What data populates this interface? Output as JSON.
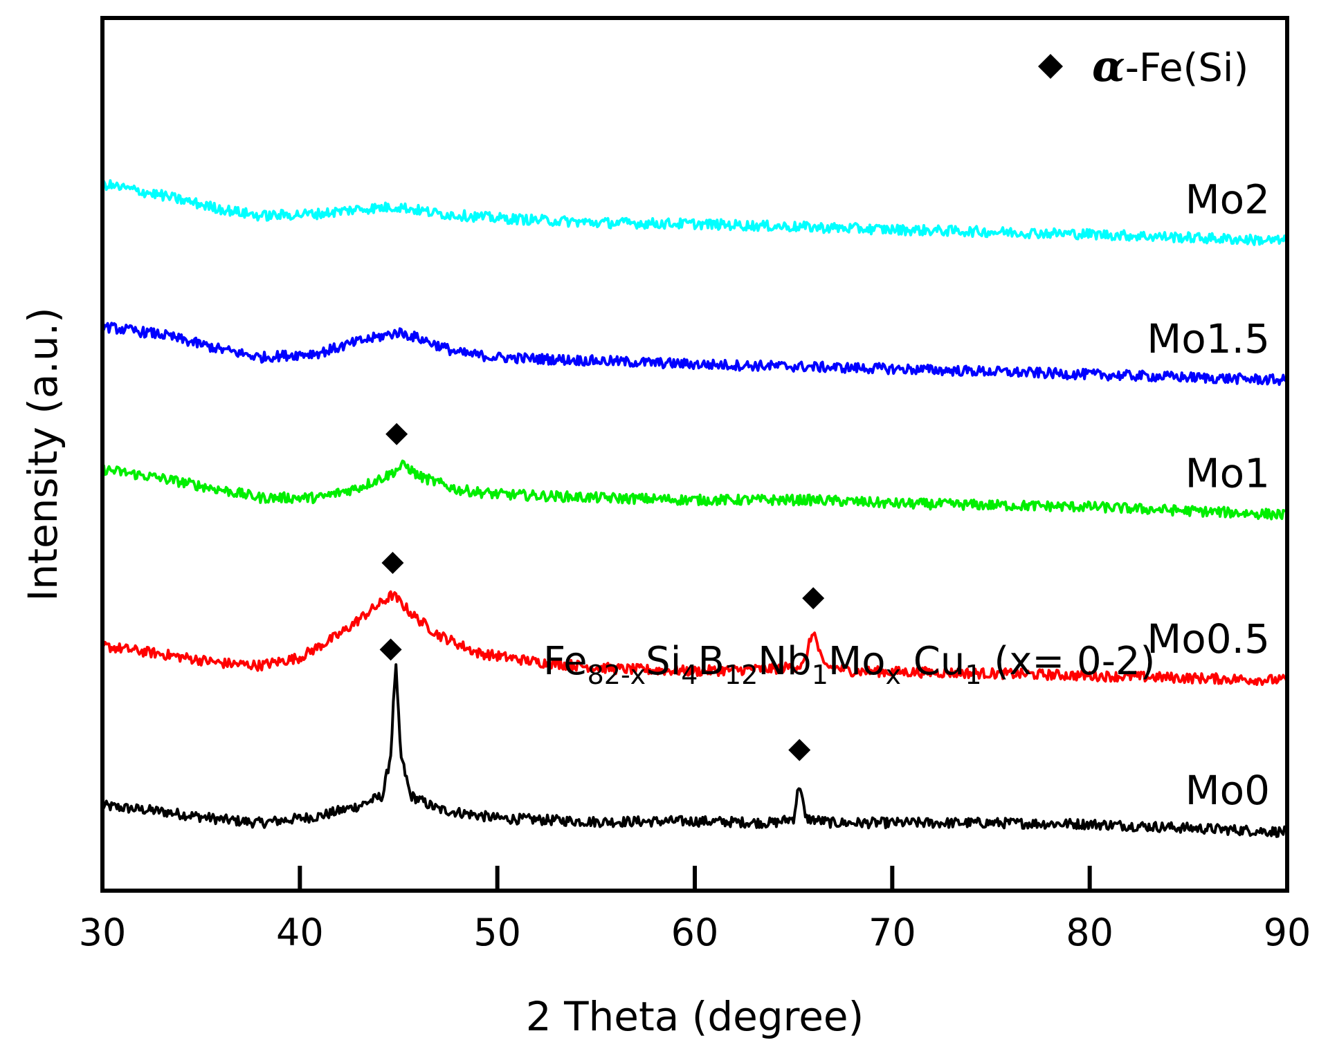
{
  "chart_data": {
    "type": "line",
    "xlabel": "2 Theta (degree)",
    "ylabel": "Intensity (a.u.)",
    "xlim": [
      30,
      90
    ],
    "xticks": [
      30,
      40,
      50,
      60,
      70,
      80,
      90
    ],
    "tick_labels": [
      "30",
      "40",
      "50",
      "60",
      "70",
      "80",
      "90"
    ],
    "yticks": [],
    "legend": {
      "marker": "diamond",
      "alpha": "α",
      "text": "-Fe(Si)",
      "placement": "top-right"
    },
    "annotation": {
      "label": "Fe82-xSi4B12Nb1Mox Cu1 (x= 0-2)",
      "parts": [
        {
          "t": "Fe",
          "s": "normal"
        },
        {
          "t": "82-x",
          "s": "sub"
        },
        {
          "t": "Si",
          "s": "normal"
        },
        {
          "t": "4",
          "s": "sub"
        },
        {
          "t": "B",
          "s": "normal"
        },
        {
          "t": "12",
          "s": "sub"
        },
        {
          "t": "Nb",
          "s": "normal"
        },
        {
          "t": "1",
          "s": "sub"
        },
        {
          "t": "Mo",
          "s": "normal"
        },
        {
          "t": "x",
          "s": "sub"
        },
        {
          "t": " Cu",
          "s": "normal"
        },
        {
          "t": "1",
          "s": "sub"
        },
        {
          "t": " (x= 0-2)",
          "s": "normal"
        }
      ]
    },
    "series": [
      {
        "name": "Mo0",
        "color": "#000000",
        "offset": 0,
        "points": [
          [
            30,
            15
          ],
          [
            33,
            10
          ],
          [
            36,
            3
          ],
          [
            38,
            0
          ],
          [
            41,
            6
          ],
          [
            43,
            15
          ],
          [
            44.2,
            24
          ],
          [
            44.6,
            60
          ],
          [
            44.85,
            140
          ],
          [
            45.1,
            60
          ],
          [
            45.6,
            24
          ],
          [
            47,
            12
          ],
          [
            50,
            4
          ],
          [
            55,
            1
          ],
          [
            60,
            1.5
          ],
          [
            64,
            0
          ],
          [
            65,
            4
          ],
          [
            65.3,
            36
          ],
          [
            65.6,
            4
          ],
          [
            67,
            0
          ],
          [
            75,
            0
          ],
          [
            80,
            -1
          ],
          [
            90,
            -8
          ]
        ],
        "markers": [
          44.6,
          65.3
        ]
      },
      {
        "name": "Mo0.5",
        "color": "#ff0000",
        "offset": 135,
        "points": [
          [
            30,
            20
          ],
          [
            33,
            13
          ],
          [
            36,
            5
          ],
          [
            38,
            3
          ],
          [
            40,
            10
          ],
          [
            42,
            30
          ],
          [
            43.5,
            50
          ],
          [
            44.7,
            65
          ],
          [
            45.8,
            46
          ],
          [
            47,
            30
          ],
          [
            49,
            14
          ],
          [
            52,
            6
          ],
          [
            56,
            0
          ],
          [
            60,
            -2
          ],
          [
            64,
            0
          ],
          [
            65.5,
            3
          ],
          [
            66,
            34
          ],
          [
            66.5,
            3
          ],
          [
            68,
            -2
          ],
          [
            75,
            -4
          ],
          [
            85,
            -8
          ],
          [
            90,
            -10
          ]
        ],
        "markers": [
          44.7,
          66
        ]
      },
      {
        "name": "Mo1",
        "color": "#00ee00",
        "offset": 280,
        "points": [
          [
            30,
            30
          ],
          [
            33,
            22
          ],
          [
            36,
            12
          ],
          [
            38,
            5
          ],
          [
            41,
            5
          ],
          [
            43,
            14
          ],
          [
            44.5,
            25
          ],
          [
            45.3,
            34
          ],
          [
            46,
            24
          ],
          [
            48,
            12
          ],
          [
            50,
            8
          ],
          [
            55,
            5
          ],
          [
            60,
            3
          ],
          [
            66,
            3
          ],
          [
            70,
            0
          ],
          [
            80,
            -3
          ],
          [
            90,
            -10
          ]
        ],
        "markers": [
          44.9
        ]
      },
      {
        "name": "Mo1.5",
        "color": "#0000ff",
        "offset": 400,
        "points": [
          [
            30,
            35
          ],
          [
            33,
            28
          ],
          [
            36,
            15
          ],
          [
            38,
            8
          ],
          [
            41,
            12
          ],
          [
            43,
            22
          ],
          [
            45,
            30
          ],
          [
            46,
            25
          ],
          [
            48,
            12
          ],
          [
            50,
            8
          ],
          [
            55,
            5
          ],
          [
            60,
            2
          ],
          [
            70,
            -2
          ],
          [
            80,
            -7
          ],
          [
            90,
            -12
          ]
        ],
        "markers": []
      },
      {
        "name": "Mo2",
        "color": "#00ffff",
        "offset": 520,
        "points": [
          [
            30,
            40
          ],
          [
            33,
            30
          ],
          [
            36,
            18
          ],
          [
            38,
            12
          ],
          [
            41,
            14
          ],
          [
            43,
            18
          ],
          [
            45,
            20
          ],
          [
            47,
            14
          ],
          [
            50,
            10
          ],
          [
            55,
            6
          ],
          [
            60,
            5
          ],
          [
            70,
            0
          ],
          [
            80,
            -4
          ],
          [
            90,
            -10
          ]
        ],
        "markers": []
      }
    ]
  }
}
